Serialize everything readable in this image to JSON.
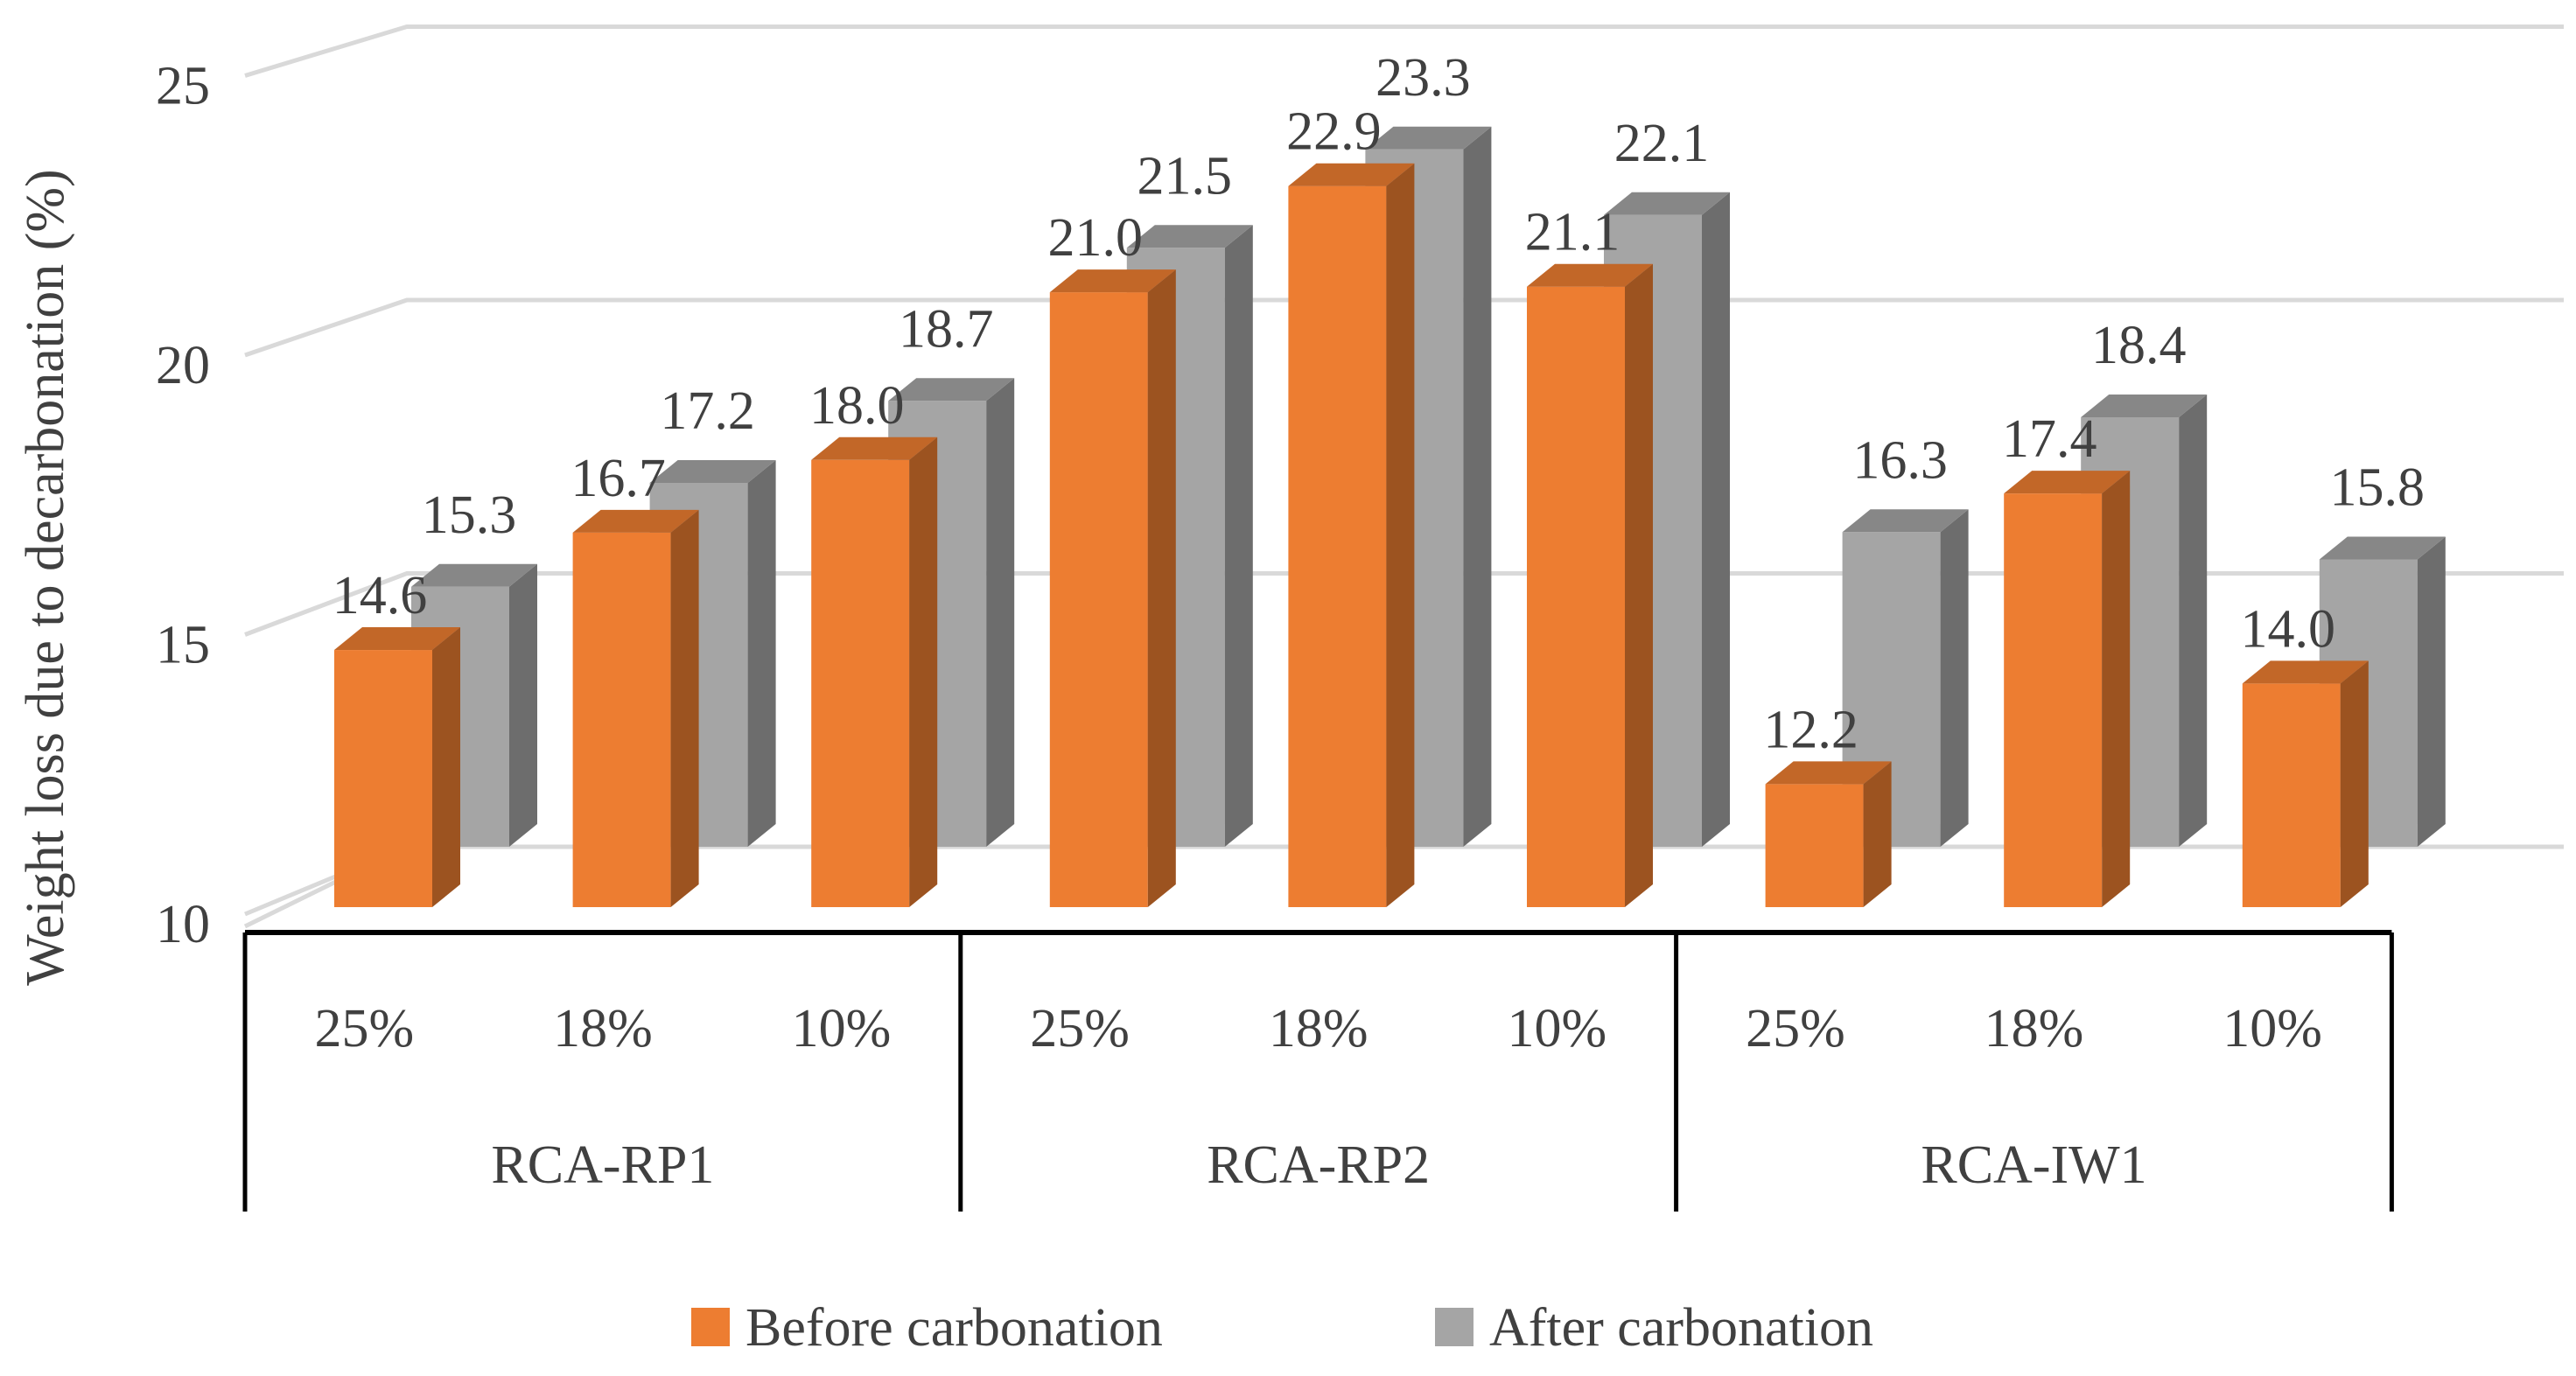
{
  "chart_data": {
    "type": "bar",
    "style": "3d-clustered",
    "title": "",
    "ylabel": "Weight loss due to decarbonation (%)",
    "xlabel": "",
    "ylim": [
      10,
      25
    ],
    "yticks": [
      10,
      15,
      20,
      25
    ],
    "groups": [
      {
        "name": "RCA-RP1",
        "categories": [
          "25%",
          "18%",
          "10%"
        ]
      },
      {
        "name": "RCA-RP2",
        "categories": [
          "25%",
          "18%",
          "10%"
        ]
      },
      {
        "name": "RCA-IW1",
        "categories": [
          "25%",
          "18%",
          "10%"
        ]
      }
    ],
    "series": [
      {
        "name": "Before carbonation",
        "color": "#ED7D31",
        "values": [
          14.6,
          16.7,
          18.0,
          21.0,
          22.9,
          21.1,
          12.2,
          17.4,
          14.0
        ],
        "labels": [
          "14.6",
          "16.7",
          "18.0",
          "21.0",
          "22.9",
          "21.1",
          "12.2",
          "17.4",
          "14.0"
        ]
      },
      {
        "name": "After carbonation",
        "color": "#A5A5A5",
        "values": [
          15.3,
          17.2,
          18.7,
          21.5,
          23.3,
          22.1,
          16.3,
          18.4,
          15.8
        ],
        "labels": [
          "15.3",
          "17.2",
          "18.7",
          "21.5",
          "23.3",
          "22.1",
          "16.3",
          "18.4",
          "15.8"
        ]
      }
    ],
    "legend_position": "bottom",
    "grid": true
  }
}
